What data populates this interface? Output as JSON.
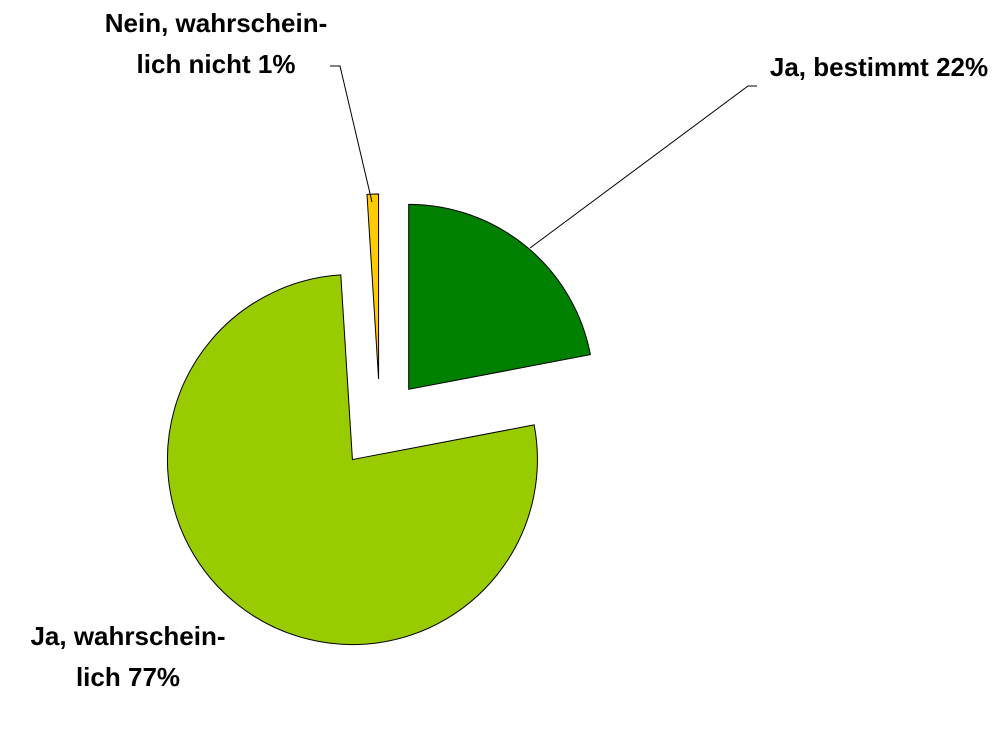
{
  "chart_data": {
    "type": "pie",
    "categories": [
      "Ja, bestimmt",
      "Ja, wahrschein-lich",
      "Nein, wahrschein-lich nicht"
    ],
    "values": [
      22,
      77,
      1
    ],
    "value_labels": [
      "22%",
      "77%",
      "1%"
    ],
    "colors": [
      "#008000",
      "#99cc00",
      "#ffcc00"
    ],
    "start_angle": 0,
    "exploded": true
  }
}
